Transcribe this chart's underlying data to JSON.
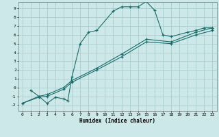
{
  "title": "",
  "xlabel": "Humidex (Indice chaleur)",
  "background_color": "#cce8e8",
  "grid_color": "#aacccc",
  "line_color": "#1a6b6b",
  "xlim": [
    -0.5,
    23.5
  ],
  "ylim": [
    -2.7,
    9.7
  ],
  "xticks": [
    0,
    1,
    2,
    3,
    4,
    5,
    6,
    7,
    8,
    9,
    10,
    11,
    12,
    13,
    14,
    15,
    16,
    17,
    18,
    19,
    20,
    21,
    22,
    23
  ],
  "yticks": [
    -2,
    -1,
    0,
    1,
    2,
    3,
    4,
    5,
    6,
    7,
    8,
    9
  ],
  "line1_x": [
    1,
    2,
    3,
    4,
    5,
    5.5,
    6,
    7,
    8,
    9,
    11,
    12,
    13,
    14,
    15,
    16,
    17,
    18,
    20,
    21,
    22,
    23
  ],
  "line1_y": [
    -0.3,
    -1.0,
    -1.8,
    -1.1,
    -1.3,
    -1.5,
    1.2,
    5.0,
    6.3,
    6.5,
    8.7,
    9.2,
    9.2,
    9.2,
    9.8,
    8.8,
    6.0,
    5.8,
    6.3,
    6.5,
    6.8,
    6.8
  ],
  "line2_x": [
    0,
    2,
    3,
    5,
    6,
    9,
    12,
    15,
    18,
    21,
    23
  ],
  "line2_y": [
    -1.8,
    -1.0,
    -0.8,
    0.0,
    0.8,
    2.2,
    3.8,
    5.5,
    5.2,
    6.3,
    6.8
  ],
  "line3_x": [
    0,
    2,
    3,
    5,
    6,
    9,
    12,
    15,
    18,
    21,
    23
  ],
  "line3_y": [
    -1.8,
    -1.1,
    -1.0,
    -0.2,
    0.6,
    2.0,
    3.5,
    5.2,
    5.0,
    6.0,
    6.5
  ]
}
